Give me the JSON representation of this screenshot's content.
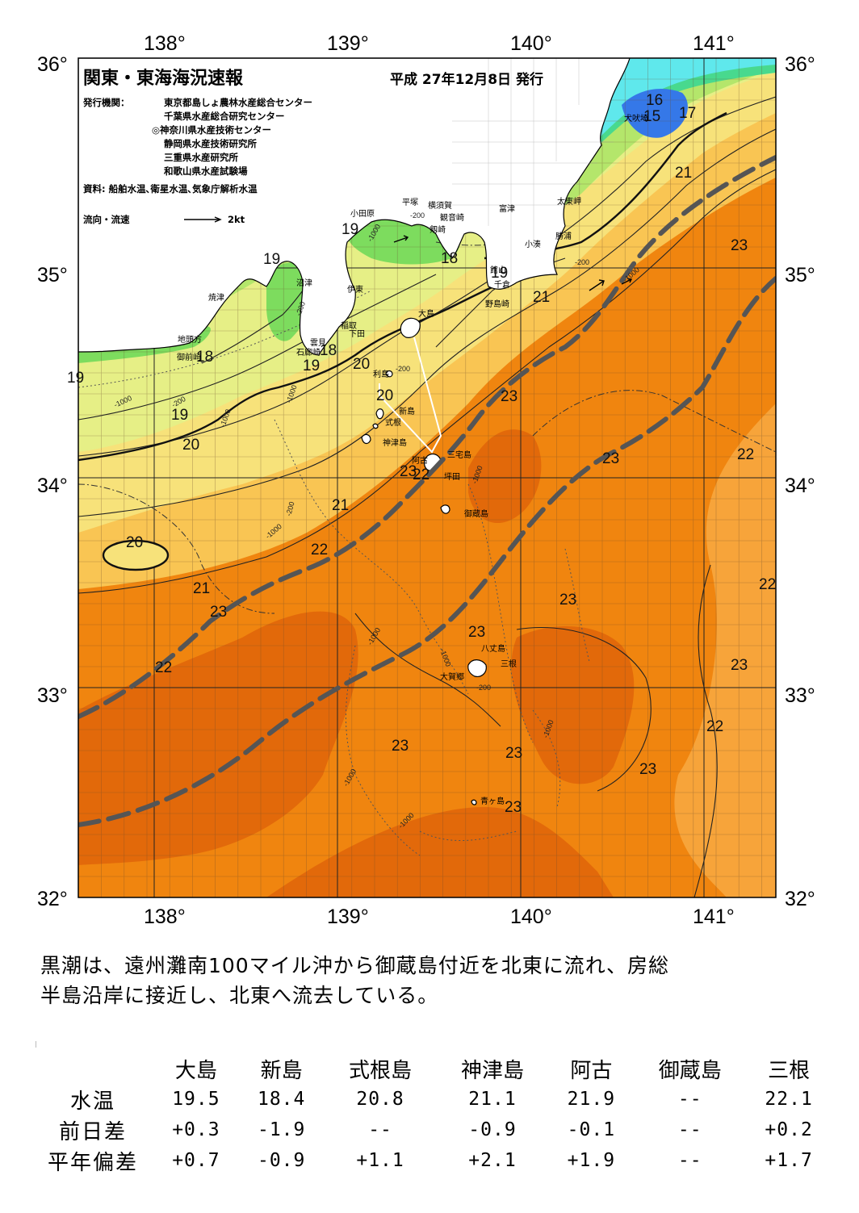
{
  "header": {
    "title": "関東・東海海況速報",
    "date": "平成 27年12月8日 発行",
    "publisher_label": "発行機関：",
    "publishers": [
      "東京都島しょ農林水産総合センター",
      "千葉県水産総合研究センター",
      "◎神奈川県水産技術センター",
      "静岡県水産技術研究所",
      "三重県水産研究所",
      "和歌山県水産試験場"
    ],
    "source": "資料: 船舶水温､衛星水温､気象庁解析水温",
    "legend_label": "流向・流速",
    "legend_scale": "2kt"
  },
  "axes": {
    "longitudes": [
      "138°",
      "139°",
      "140°",
      "141°"
    ],
    "latitudes": [
      "36°",
      "35°",
      "34°",
      "33°",
      "32°"
    ]
  },
  "colors": {
    "warm_dark": "#e2690a",
    "warm": "#f0850f",
    "warm_light": "#f7a43a",
    "yellow_orange": "#f9c553",
    "yellow": "#f7e27a",
    "yellow_green": "#e6ef86",
    "green": "#b4e66b",
    "green_deep": "#7ddc5e",
    "teal": "#48d98e",
    "cyan": "#5fe8ec",
    "blue": "#3578e8",
    "land": "#ffffff",
    "kuroshio_axis": "#555555"
  },
  "isotherm_labels": [
    {
      "text": "16"
    },
    {
      "text": "15"
    },
    {
      "text": "17"
    },
    {
      "text": "21"
    },
    {
      "text": "23"
    },
    {
      "text": "19"
    },
    {
      "text": "19"
    },
    {
      "text": "18"
    },
    {
      "text": "19"
    },
    {
      "text": "21"
    },
    {
      "text": "18"
    },
    {
      "text": "19"
    },
    {
      "text": "18"
    },
    {
      "text": "20"
    },
    {
      "text": "19"
    },
    {
      "text": "20"
    },
    {
      "text": "19"
    },
    {
      "text": "20"
    },
    {
      "text": "23"
    },
    {
      "text": "22"
    },
    {
      "text": "23"
    },
    {
      "text": "22"
    },
    {
      "text": "21"
    },
    {
      "text": "20"
    },
    {
      "text": "22"
    },
    {
      "text": "21"
    },
    {
      "text": "23"
    },
    {
      "text": "23"
    },
    {
      "text": "22"
    },
    {
      "text": "23"
    },
    {
      "text": "22"
    },
    {
      "text": "23"
    },
    {
      "text": "23"
    },
    {
      "text": "23"
    },
    {
      "text": "23"
    },
    {
      "text": "23"
    },
    {
      "text": "22"
    },
    {
      "text": "23"
    }
  ],
  "place_names": [
    "犬吠埼",
    "太東岬",
    "勝浦",
    "小湊",
    "富津",
    "横須賀",
    "観音崎",
    "平塚",
    "小田原",
    "剱崎",
    "館山",
    "千倉",
    "野島崎",
    "沼津",
    "伊東",
    "稲取",
    "下田",
    "焼津",
    "雲見",
    "石廊崎",
    "地頭方",
    "御前崎",
    "大島",
    "利島",
    "新島",
    "式根",
    "神津島",
    "阿古",
    "三宅島",
    "坪田",
    "御蔵島",
    "八丈島",
    "三根",
    "大賀郷",
    "青ヶ島"
  ],
  "depth_labels": [
    "-200",
    "-1000"
  ],
  "summary": [
    "黒潮は、遠州灘南100マイル沖から御蔵島付近を北東に流れ、房総",
    "半島沿岸に接近し、北東へ流去している。"
  ],
  "table": {
    "columns": [
      "大島",
      "新島",
      "式根島",
      "神津島",
      "阿古",
      "御蔵島",
      "三根"
    ],
    "rows": [
      {
        "label": "水温",
        "values": [
          "19.5",
          "18.4",
          "20.8",
          "21.1",
          "21.9",
          "--",
          "22.1"
        ]
      },
      {
        "label": "前日差",
        "values": [
          "+0.3",
          "-1.9",
          "--",
          "-0.9",
          "-0.1",
          "--",
          "+0.2"
        ]
      },
      {
        "label": "平年偏差",
        "values": [
          "+0.7",
          "-0.9",
          "+1.1",
          "+2.1",
          "+1.9",
          "--",
          "+1.7"
        ]
      }
    ]
  }
}
